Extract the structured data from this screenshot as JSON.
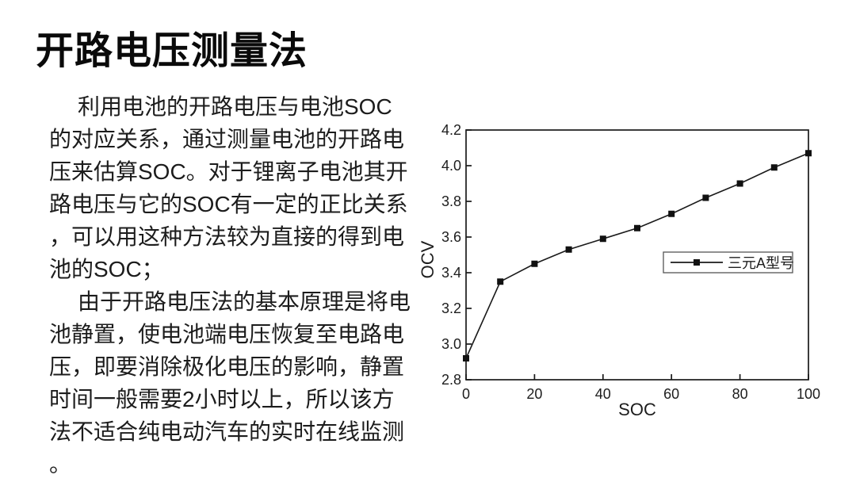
{
  "slide": {
    "title": "开路电压测量法",
    "body": {
      "paragraph1_lines": [
        "利用电池的开路电压与电池SOC",
        "的对应关系，通过测量电池的开路电",
        "压来估算SOC。对于锂离子电池其开",
        "路电压与它的SOC有一定的正比关系",
        "，可以用这种方法较为直接的得到电",
        "池的SOC；"
      ],
      "paragraph2_lines": [
        "由于开路电压法的基本原理是将电",
        "池静置，使电池端电压恢复至电路电",
        "压，即要消除极化电压的影响，静置",
        "时间一般需要2小时以上，所以该方",
        "法不适合纯电动汽车的实时在线监测",
        "。"
      ]
    }
  },
  "chart_data": {
    "type": "line",
    "title": "",
    "xlabel": "SOC",
    "ylabel": "OCV",
    "x": [
      0,
      10,
      20,
      30,
      40,
      50,
      60,
      70,
      80,
      90,
      100
    ],
    "series": [
      {
        "name": "三元A型号",
        "values": [
          2.92,
          3.35,
          3.45,
          3.53,
          3.59,
          3.65,
          3.73,
          3.82,
          3.9,
          3.99,
          4.07
        ]
      }
    ],
    "xlim": [
      0,
      100
    ],
    "ylim": [
      2.8,
      4.2
    ],
    "x_ticks": [
      0,
      20,
      40,
      60,
      80,
      100
    ],
    "y_ticks": [
      2.8,
      3.0,
      3.2,
      3.4,
      3.6,
      3.8,
      4.0,
      4.2
    ],
    "grid": false,
    "marker": "square",
    "legend": {
      "position": "inside-middle-right",
      "border": true
    },
    "colors": {
      "line": "#1a1a1a",
      "marker": "#111111",
      "text": "#222222",
      "legend_border": "#555555"
    }
  }
}
